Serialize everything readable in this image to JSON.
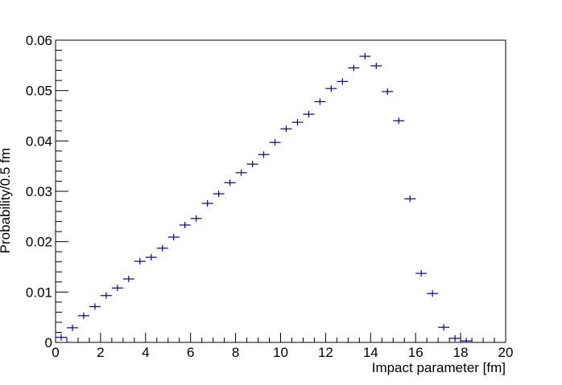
{
  "chart_data": {
    "type": "histogram",
    "x_label": "Impact parameter [fm]",
    "y_label": "Probability/0.5 fm",
    "bins": [
      0,
      0.5,
      1,
      1.5,
      2,
      2.5,
      3,
      3.5,
      4,
      4.5,
      5,
      5.5,
      6,
      6.5,
      7,
      7.5,
      8,
      8.5,
      9,
      9.5,
      10,
      10.5,
      11,
      11.5,
      12,
      12.5,
      13,
      13.5,
      14,
      14.5,
      15,
      15.5,
      16,
      16.5,
      17,
      17.5,
      18,
      18.5
    ],
    "values": [
      0.001,
      0.0029,
      0.0053,
      0.0071,
      0.0093,
      0.0108,
      0.0126,
      0.0161,
      0.0169,
      0.0187,
      0.0209,
      0.0233,
      0.0246,
      0.0276,
      0.0295,
      0.0317,
      0.0337,
      0.0354,
      0.0373,
      0.0397,
      0.0424,
      0.0437,
      0.0453,
      0.0478,
      0.0504,
      0.0518,
      0.0545,
      0.0568,
      0.0549,
      0.0498,
      0.044,
      0.0285,
      0.0137,
      0.0097,
      0.003,
      0.0008,
      0.0003
    ],
    "color": "#000099",
    "xlim": [
      0,
      20
    ],
    "xticks": [
      0,
      2,
      4,
      6,
      8,
      10,
      12,
      14,
      16,
      18,
      20
    ],
    "ylim": [
      0,
      0.06
    ],
    "yticks": [
      0,
      0.01,
      0.02,
      0.03,
      0.04,
      0.05,
      0.06
    ]
  }
}
